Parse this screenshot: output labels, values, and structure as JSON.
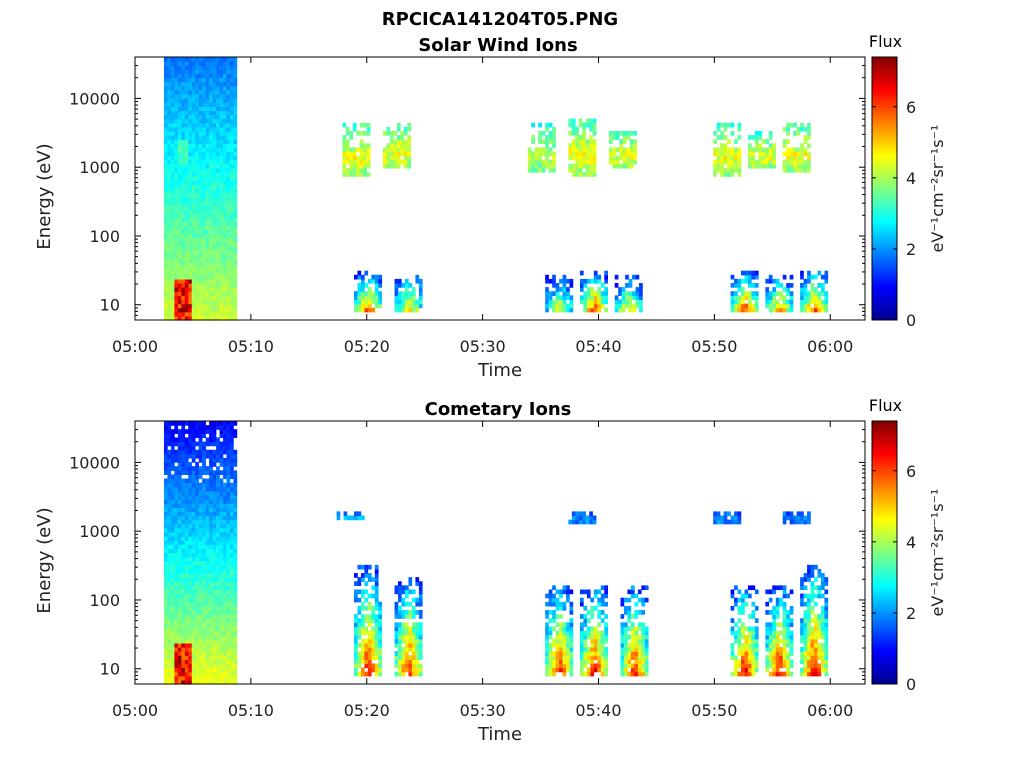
{
  "figure_title": "RPCICA141204T05.PNG",
  "chart_data": [
    {
      "type": "heatmap",
      "title": "Solar Wind Ions",
      "xlabel": "Time",
      "ylabel": "Energy (eV)",
      "y_scale": "log",
      "ylim": [
        6,
        40000
      ],
      "xlim": [
        "05:00",
        "06:03"
      ],
      "x_ticks": [
        "05:00",
        "05:10",
        "05:20",
        "05:30",
        "05:40",
        "05:50",
        "06:00"
      ],
      "y_ticks": [
        "10",
        "100",
        "1000",
        "10000"
      ],
      "colorbar": {
        "title": "Flux",
        "label": "eV⁻¹cm⁻²sr⁻¹s⁻¹",
        "range": [
          0,
          7.4
        ],
        "ticks": [
          "0",
          "2",
          "4",
          "6"
        ],
        "colormap": "jet"
      },
      "background_block": {
        "t_start": "05:02.5",
        "t_end": "05:08.7"
      },
      "bursts": [
        {
          "t": "05:19",
          "e_low": 700,
          "e_high": 4000,
          "peak_flux": 4.5
        },
        {
          "t": "05:22.5",
          "e_low": 900,
          "e_high": 4000,
          "peak_flux": 4.5
        },
        {
          "t": "05:35",
          "e_low": 800,
          "e_high": 4000,
          "peak_flux": 4.2
        },
        {
          "t": "05:38.5",
          "e_low": 700,
          "e_high": 5000,
          "peak_flux": 4.5
        },
        {
          "t": "05:42",
          "e_low": 900,
          "e_high": 3000,
          "peak_flux": 4.5
        },
        {
          "t": "05:51",
          "e_low": 700,
          "e_high": 4000,
          "peak_flux": 4.5
        },
        {
          "t": "05:54",
          "e_low": 900,
          "e_high": 3000,
          "peak_flux": 4.5
        },
        {
          "t": "05:57",
          "e_low": 800,
          "e_high": 4000,
          "peak_flux": 4.5
        },
        {
          "t": "05:20",
          "e_low": 7,
          "e_high": 30,
          "peak_flux": 6.5
        },
        {
          "t": "05:23.5",
          "e_low": 7,
          "e_high": 30,
          "peak_flux": 5.5
        },
        {
          "t": "05:36.5",
          "e_low": 7,
          "e_high": 25,
          "peak_flux": 5.0
        },
        {
          "t": "05:39.5",
          "e_low": 7,
          "e_high": 30,
          "peak_flux": 6.5
        },
        {
          "t": "05:42.5",
          "e_low": 7,
          "e_high": 25,
          "peak_flux": 5.5
        },
        {
          "t": "05:52.5",
          "e_low": 7,
          "e_high": 30,
          "peak_flux": 6.5
        },
        {
          "t": "05:55.5",
          "e_low": 7,
          "e_high": 25,
          "peak_flux": 6.0
        },
        {
          "t": "05:58.5",
          "e_low": 7,
          "e_high": 30,
          "peak_flux": 6.5
        }
      ]
    },
    {
      "type": "heatmap",
      "title": "Cometary Ions",
      "xlabel": "Time",
      "ylabel": "Energy (eV)",
      "y_scale": "log",
      "ylim": [
        6,
        40000
      ],
      "xlim": [
        "05:00",
        "06:03"
      ],
      "x_ticks": [
        "05:00",
        "05:10",
        "05:20",
        "05:30",
        "05:40",
        "05:50",
        "06:00"
      ],
      "y_ticks": [
        "10",
        "100",
        "1000",
        "10000"
      ],
      "colorbar": {
        "title": "Flux",
        "label": "eV⁻¹cm⁻²sr⁻¹s⁻¹",
        "range": [
          0,
          7.4
        ],
        "ticks": [
          "0",
          "2",
          "4",
          "6"
        ],
        "colormap": "jet"
      },
      "background_block": {
        "t_start": "05:02.5",
        "t_end": "05:08.7"
      },
      "bursts": [
        {
          "t": "05:20",
          "e_low": 7,
          "e_high": 300,
          "peak_flux": 7.0
        },
        {
          "t": "05:23.5",
          "e_low": 7,
          "e_high": 200,
          "peak_flux": 6.8
        },
        {
          "t": "05:36.5",
          "e_low": 7,
          "e_high": 150,
          "peak_flux": 6.8
        },
        {
          "t": "05:39.5",
          "e_low": 7,
          "e_high": 150,
          "peak_flux": 7.0
        },
        {
          "t": "05:43",
          "e_low": 7,
          "e_high": 150,
          "peak_flux": 6.8
        },
        {
          "t": "05:52.5",
          "e_low": 7,
          "e_high": 150,
          "peak_flux": 7.0
        },
        {
          "t": "05:55.5",
          "e_low": 7,
          "e_high": 150,
          "peak_flux": 7.0
        },
        {
          "t": "05:58.5",
          "e_low": 7,
          "e_high": 300,
          "peak_flux": 7.0
        },
        {
          "t": "05:18.5",
          "e_low": 1300,
          "e_high": 1800,
          "peak_flux": 2.5
        },
        {
          "t": "05:38.5",
          "e_low": 1200,
          "e_high": 1800,
          "peak_flux": 2.0
        },
        {
          "t": "05:51",
          "e_low": 1200,
          "e_high": 1800,
          "peak_flux": 2.0
        },
        {
          "t": "05:57",
          "e_low": 1200,
          "e_high": 1800,
          "peak_flux": 2.0
        }
      ]
    }
  ]
}
